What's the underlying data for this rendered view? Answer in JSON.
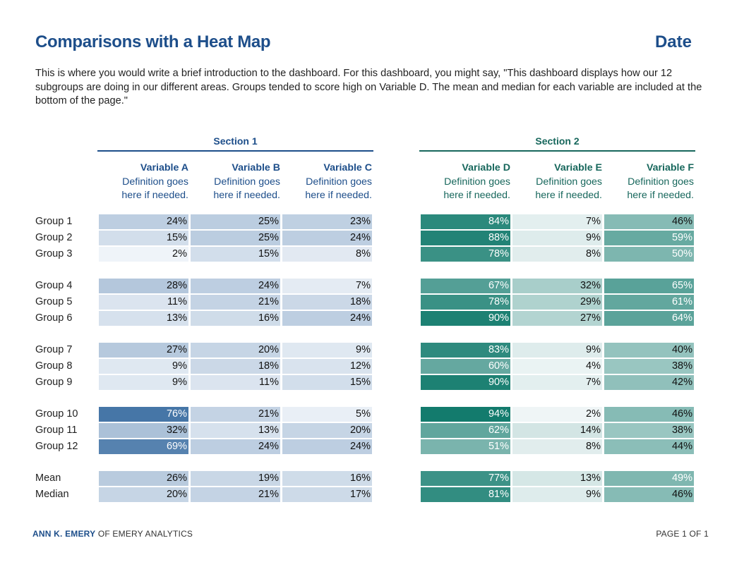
{
  "header": {
    "title": "Comparisons with a Heat Map",
    "date": "Date",
    "intro": "This is where you would write a brief introduction to the dashboard. For this dashboard, you might say, \"This dashboard displays how our 12 subgroups are doing in our different areas. Groups tended to score high on Variable D. The mean and median for each variable are included at the bottom of the page.\""
  },
  "footer": {
    "brand": "ANN K. EMERY",
    "brand_suffix": " OF EMERY ANALYTICS",
    "page": "PAGE 1 OF 1"
  },
  "colors": {
    "title": "#1d4e8a",
    "section1_dark": "#3d6fa3",
    "section1_light": "#f4f7fb",
    "section2_dark": "#117a6c",
    "section2_light": "#f4f8f9"
  },
  "chart_data": {
    "type": "heatmap",
    "title": "Comparisons with a Heat Map",
    "sections": [
      {
        "name": "Section 1",
        "variables": [
          "Variable A",
          "Variable B",
          "Variable C"
        ],
        "palette": "blue"
      },
      {
        "name": "Section 2",
        "variables": [
          "Variable D",
          "Variable E",
          "Variable F"
        ],
        "palette": "teal"
      }
    ],
    "variables": [
      {
        "name": "Variable A",
        "definition": "Definition goes here if needed.",
        "definition_lines": [
          "Definition goes",
          "here if needed."
        ]
      },
      {
        "name": "Variable B",
        "definition": "Definition goes here if needed.",
        "definition_lines": [
          "Definition goes",
          "here if needed."
        ]
      },
      {
        "name": "Variable C",
        "definition": "Definition goes here if needed.",
        "definition_lines": [
          "Definition goes",
          "here if needed."
        ]
      },
      {
        "name": "Variable D",
        "definition": "Definition goes here if needed.",
        "definition_lines": [
          "Definition goes",
          "here if needed."
        ]
      },
      {
        "name": "Variable E",
        "definition": "Definition goes here if needed.",
        "definition_lines": [
          "Definition goes",
          "here if needed."
        ]
      },
      {
        "name": "Variable F",
        "definition": "Definition goes here if needed.",
        "definition_lines": [
          "Definition goes",
          "here if needed."
        ]
      }
    ],
    "row_groups": [
      [
        {
          "label": "Group 1",
          "values": [
            24,
            25,
            23,
            84,
            7,
            46
          ]
        },
        {
          "label": "Group 2",
          "values": [
            15,
            25,
            24,
            88,
            9,
            59
          ]
        },
        {
          "label": "Group 3",
          "values": [
            2,
            15,
            8,
            78,
            8,
            50
          ]
        }
      ],
      [
        {
          "label": "Group 4",
          "values": [
            28,
            24,
            7,
            67,
            32,
            65
          ]
        },
        {
          "label": "Group 5",
          "values": [
            11,
            21,
            18,
            78,
            29,
            61
          ]
        },
        {
          "label": "Group 6",
          "values": [
            13,
            16,
            24,
            90,
            27,
            64
          ]
        }
      ],
      [
        {
          "label": "Group 7",
          "values": [
            27,
            20,
            9,
            83,
            9,
            40
          ]
        },
        {
          "label": "Group 8",
          "values": [
            9,
            18,
            12,
            60,
            4,
            38
          ]
        },
        {
          "label": "Group 9",
          "values": [
            9,
            11,
            15,
            90,
            7,
            42
          ]
        }
      ],
      [
        {
          "label": "Group 10",
          "values": [
            76,
            21,
            5,
            94,
            2,
            46
          ]
        },
        {
          "label": "Group 11",
          "values": [
            32,
            13,
            20,
            62,
            14,
            38
          ]
        },
        {
          "label": "Group 12",
          "values": [
            69,
            24,
            24,
            51,
            8,
            44
          ]
        }
      ],
      [
        {
          "label": "Mean",
          "values": [
            26,
            19,
            16,
            77,
            13,
            49
          ]
        },
        {
          "label": "Median",
          "values": [
            20,
            21,
            17,
            81,
            9,
            46
          ]
        }
      ]
    ],
    "value_suffix": "%",
    "value_range": [
      0,
      100
    ]
  }
}
